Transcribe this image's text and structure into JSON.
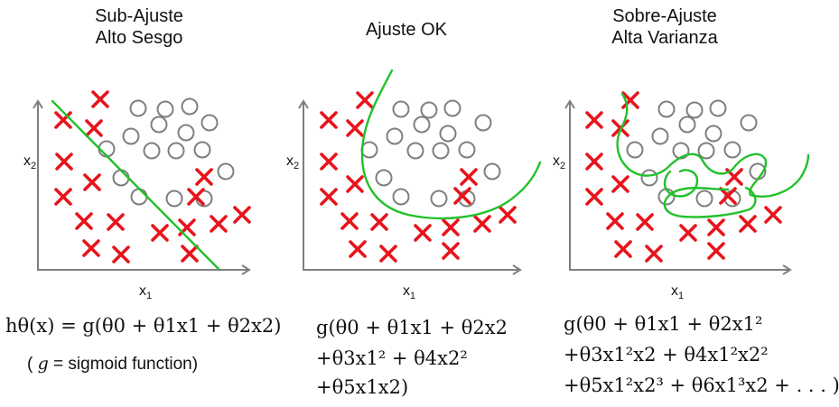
{
  "panels": [
    {
      "title_line1": "Sub-Ajuste",
      "title_line2": "Alto Sesgo",
      "xlabel": "x",
      "xlabel_sub": "1",
      "ylabel": "x",
      "ylabel_sub": "2",
      "formula_lines": [
        "hθ(x) = g(θ0 + θ1x1 + θ2x2)"
      ],
      "note_prefix": "( ",
      "note_var": "g",
      "note_text": " = sigmoid function)"
    },
    {
      "title_line1": "Ajuste OK",
      "title_line2": "",
      "xlabel": "x",
      "xlabel_sub": "1",
      "ylabel": "x",
      "ylabel_sub": "2",
      "formula_lines": [
        "g(θ0 + θ1x1 + θ2x2",
        "+θ3x1² + θ4x2²",
        "+θ5x1x2)"
      ]
    },
    {
      "title_line1": "Sobre-Ajuste",
      "title_line2": "Alta Varianza",
      "xlabel": "x",
      "xlabel_sub": "1",
      "ylabel": "x",
      "ylabel_sub": "2",
      "formula_lines": [
        "g(θ0 + θ1x1 + θ2x1²",
        "+θ3x1²x2 + θ4x1²x2²",
        "+θ5x1²x2³ + θ6x1³x2 + . . . )"
      ]
    }
  ],
  "colors": {
    "cross": "#e8141c",
    "circle": "#7f7f7f",
    "boundary": "#22c02a",
    "axis": "#7f7f7f"
  }
}
